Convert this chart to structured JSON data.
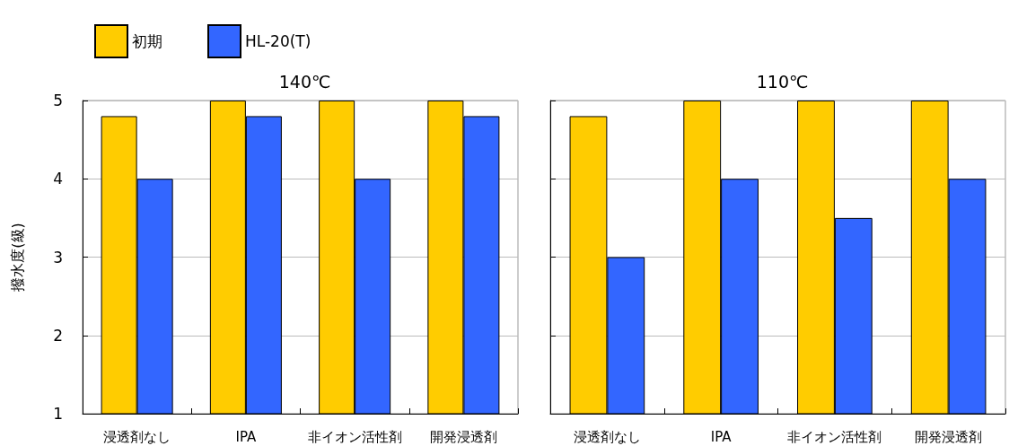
{
  "chart_data": [
    {
      "type": "bar",
      "title": "140℃",
      "ylabel": "撥水度(級)",
      "categories": [
        "浸透剤なし",
        "IPA",
        "非イオン活性剤",
        "開発浸透剤"
      ],
      "series": [
        {
          "name": "初期",
          "color": "#ffcc00",
          "values": [
            4.8,
            5,
            5,
            5
          ]
        },
        {
          "name": "HL-20(T)",
          "color": "#3366ff",
          "values": [
            4,
            4.8,
            4,
            4.8
          ]
        }
      ],
      "ylim": [
        1,
        5
      ],
      "yticks": [
        1,
        2,
        3,
        4,
        5
      ],
      "grid": "y",
      "legend": "top left"
    },
    {
      "type": "bar",
      "title": "110℃",
      "categories": [
        "浸透剤なし",
        "IPA",
        "非イオン活性剤",
        "開発浸透剤"
      ],
      "series": [
        {
          "color": "#ffcc00",
          "values": [
            4.8,
            5,
            5,
            5
          ]
        },
        {
          "color": "#3366ff",
          "values": [
            3,
            4,
            3.5,
            4
          ]
        }
      ],
      "ylim": [
        1,
        5
      ],
      "yticks": [
        1,
        2,
        3,
        4,
        5
      ],
      "grid": "y",
      "tick_labels": "x"
    }
  ]
}
